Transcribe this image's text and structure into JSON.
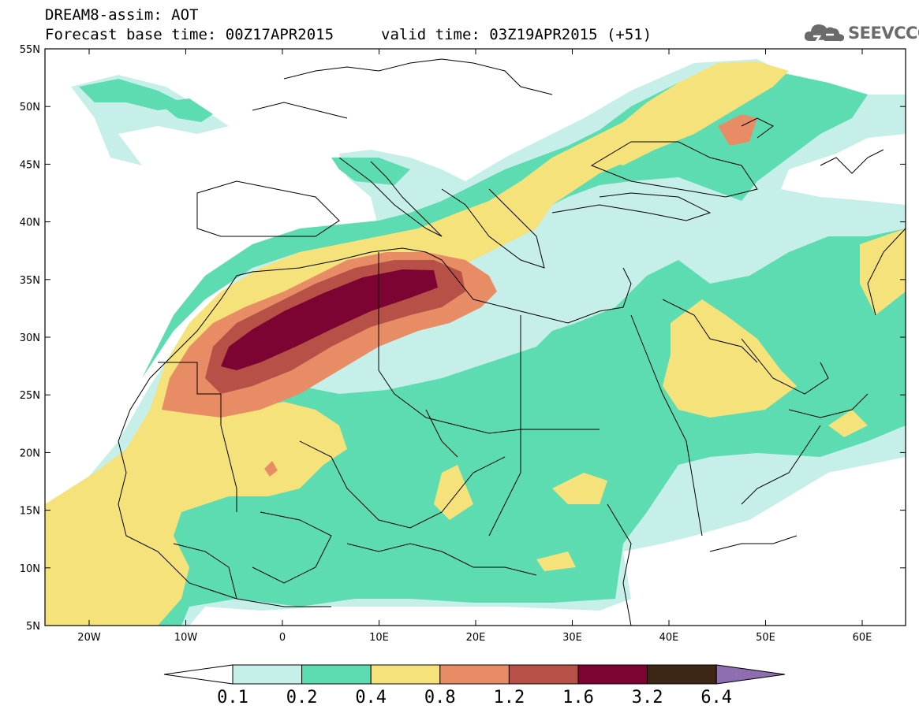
{
  "header": {
    "line1": "DREAM8-assim: AOT",
    "line2": "Forecast base time: 00Z17APR2015",
    "line3": "valid time: 03Z19APR2015 (+51)"
  },
  "logo": {
    "text": "SEEVCCC"
  },
  "map": {
    "lat_labels": [
      "55N",
      "50N",
      "45N",
      "40N",
      "35N",
      "30N",
      "25N",
      "20N",
      "15N",
      "10N",
      "5N"
    ],
    "lon_labels": [
      "20W",
      "10W",
      "0",
      "10E",
      "20E",
      "30E",
      "40E",
      "50E",
      "60E"
    ],
    "colors": {
      "c1": "#c7efe9",
      "c2": "#5ddcb2",
      "c3": "#f5e27b",
      "c4": "#e88c66",
      "c5": "#b75147",
      "c6": "#7d0432",
      "c7": "#3d2615",
      "c8": "#8e6eb1"
    }
  },
  "colorbar": {
    "labels": [
      "0.1",
      "0.2",
      "0.4",
      "0.8",
      "1.2",
      "1.6",
      "3.2",
      "6.4"
    ],
    "colors": [
      "#c7efe9",
      "#5ddcb2",
      "#f5e27b",
      "#e88c66",
      "#b75147",
      "#7d0432",
      "#3d2615"
    ],
    "over_color": "#8e6eb1"
  }
}
